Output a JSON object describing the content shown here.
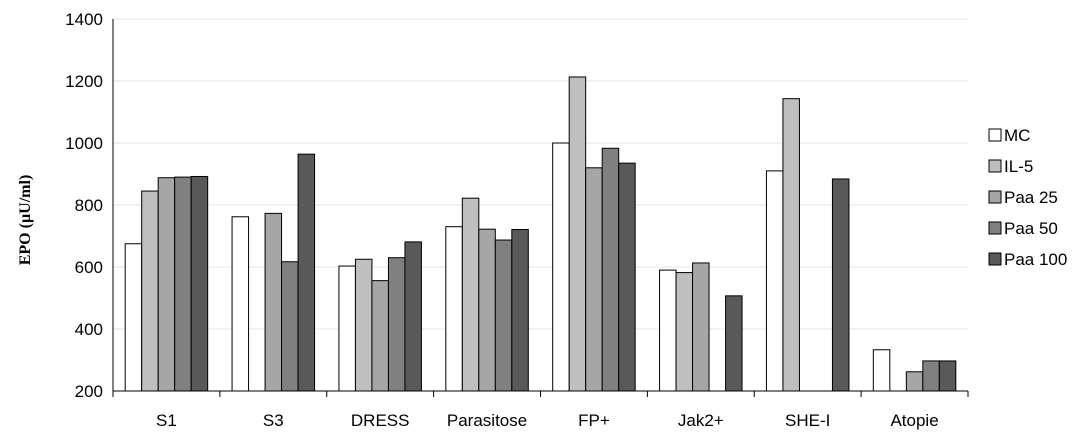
{
  "chart_data": {
    "type": "bar",
    "ylabel": "EPO (µU/ml)",
    "ylim": [
      200,
      1400
    ],
    "yticks": [
      200,
      400,
      600,
      800,
      1000,
      1200,
      1400
    ],
    "grid": true,
    "legend_position": "right",
    "categories": [
      "S1",
      "S3",
      "DRESS",
      "Parasitose",
      "FP+",
      "Jak2+",
      "SHE-I",
      "Atopie"
    ],
    "series": [
      {
        "name": "MC",
        "color": "#ffffff",
        "values": [
          675,
          762,
          603,
          730,
          1000,
          590,
          910,
          333
        ]
      },
      {
        "name": "IL-5",
        "color": "#bfbfbf",
        "values": [
          845,
          null,
          625,
          822,
          1213,
          582,
          1143,
          null
        ]
      },
      {
        "name": "Paa 25",
        "color": "#a6a6a6",
        "values": [
          888,
          773,
          556,
          722,
          920,
          613,
          null,
          262
        ]
      },
      {
        "name": "Paa 50",
        "color": "#808080",
        "values": [
          890,
          617,
          630,
          687,
          983,
          null,
          null,
          297
        ]
      },
      {
        "name": "Paa 100",
        "color": "#595959",
        "values": [
          892,
          964,
          681,
          721,
          935,
          507,
          884,
          297
        ]
      }
    ]
  }
}
